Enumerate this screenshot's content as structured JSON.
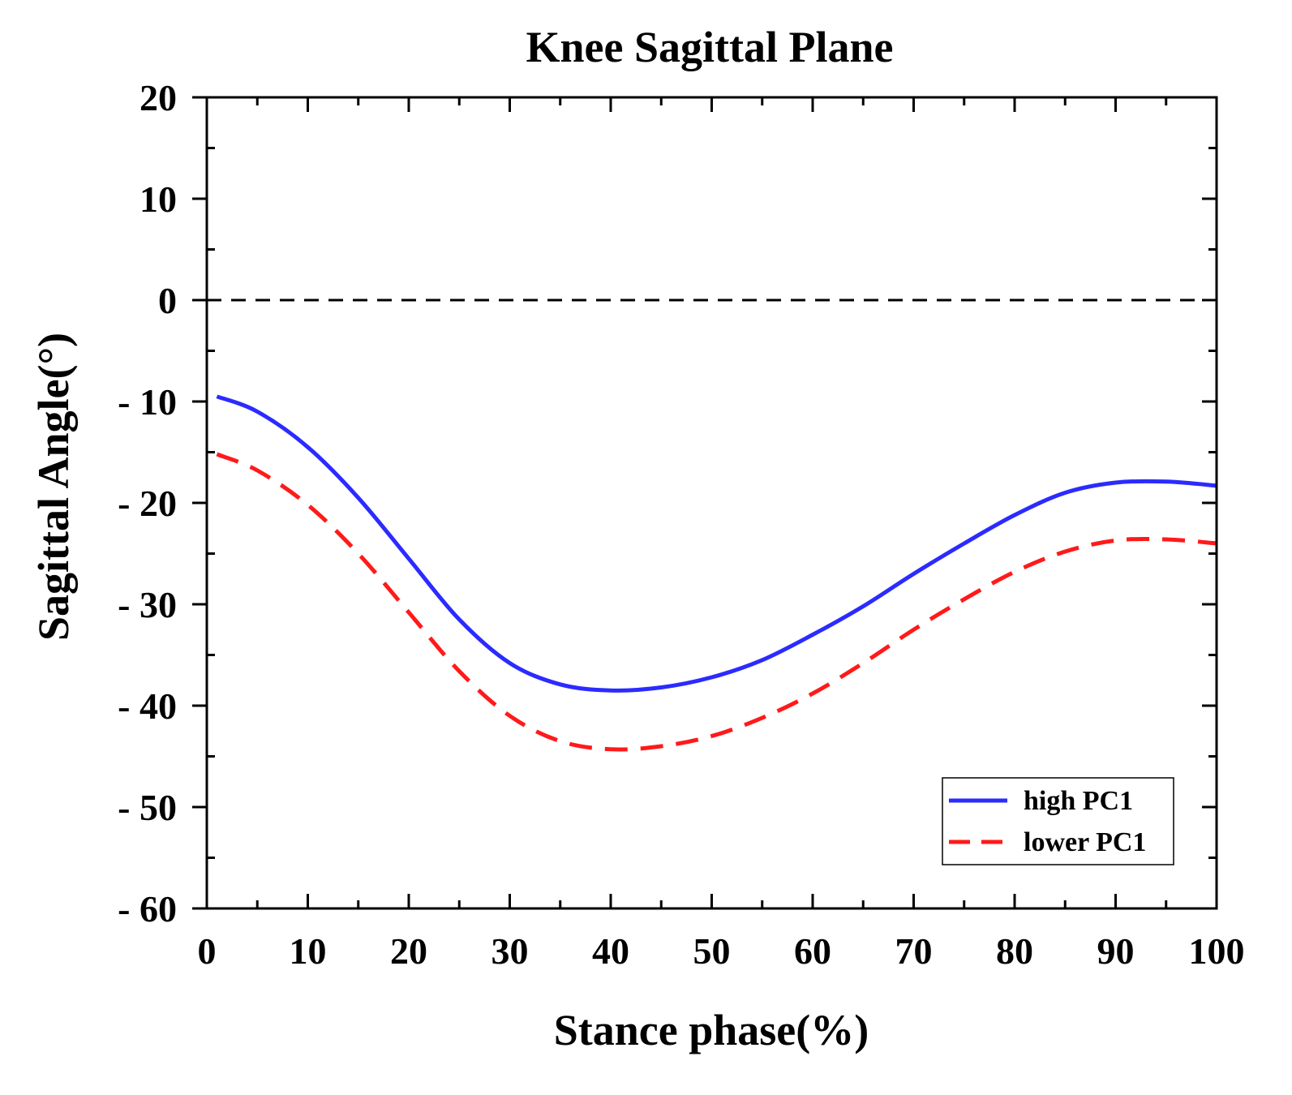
{
  "chart_data": {
    "type": "line",
    "title": "Knee  Sagittal Plane",
    "xlabel": "Stance phase(%)",
    "ylabel": "Sagittal Angle(°)",
    "xlim": [
      0,
      100
    ],
    "ylim": [
      -60,
      20
    ],
    "x_ticks": [
      0,
      10,
      20,
      30,
      40,
      50,
      60,
      70,
      80,
      90,
      100
    ],
    "y_ticks": [
      20,
      10,
      0,
      -10,
      -20,
      -30,
      -40,
      -50,
      -60
    ],
    "x_tick_labels": [
      "0",
      "10",
      "20",
      "30",
      "40",
      "50",
      "60",
      "70",
      "80",
      "90",
      "100"
    ],
    "y_tick_labels": [
      "20",
      "10",
      "0",
      "- 10",
      "- 20",
      "- 30",
      "- 40",
      "- 50",
      "- 60"
    ],
    "reference_line": {
      "y": 0,
      "style": "dashed",
      "color": "#000000"
    },
    "legend_position": "bottom-right",
    "series": [
      {
        "name": "high PC1",
        "color": "#2b2bff",
        "style": "solid",
        "x": [
          1,
          5,
          10,
          15,
          20,
          25,
          30,
          35,
          40,
          45,
          50,
          55,
          60,
          65,
          70,
          75,
          80,
          85,
          90,
          95,
          100
        ],
        "y": [
          -9.5,
          -11,
          -14.5,
          -19.5,
          -25.5,
          -31.5,
          -35.8,
          -37.9,
          -38.5,
          -38.2,
          -37.2,
          -35.5,
          -33,
          -30.2,
          -27,
          -24,
          -21.2,
          -19,
          -18,
          -17.9,
          -18.3
        ]
      },
      {
        "name": "lower PC1",
        "color": "#ff1a1a",
        "style": "dashed",
        "x": [
          1,
          5,
          10,
          15,
          20,
          25,
          30,
          35,
          40,
          45,
          50,
          55,
          60,
          65,
          70,
          75,
          80,
          85,
          90,
          95,
          100
        ],
        "y": [
          -15.2,
          -16.8,
          -20.2,
          -25,
          -30.8,
          -36.6,
          -41,
          -43.5,
          -44.3,
          -44,
          -43,
          -41.2,
          -38.8,
          -35.8,
          -32.5,
          -29.5,
          -26.8,
          -24.8,
          -23.7,
          -23.6,
          -24
        ]
      }
    ]
  }
}
